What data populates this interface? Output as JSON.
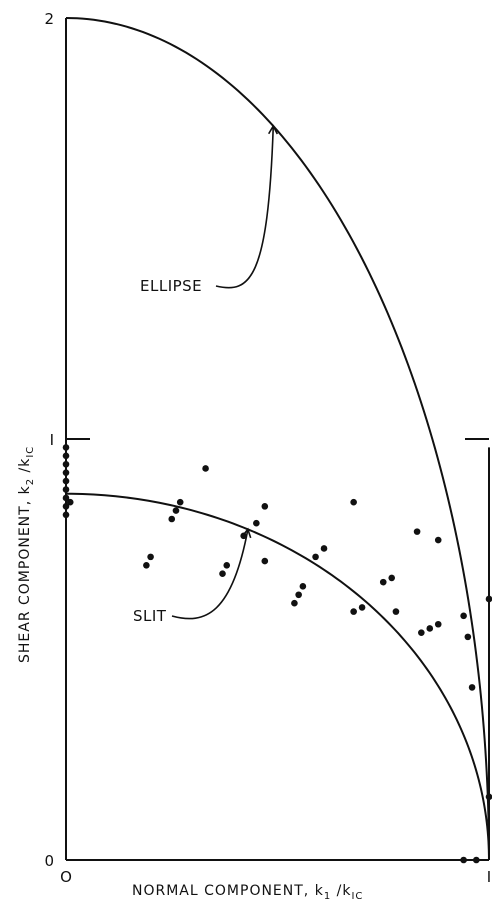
{
  "chart_data": {
    "type": "scatter",
    "xlabel": "NORMAL COMPONENT, k",
    "xlabel_sub1": "1",
    "xlabel_mid": " /k",
    "xlabel_sub2": "IC",
    "ylabel": "SHEAR COMPONENT, k",
    "ylabel_sub1": "2",
    "ylabel_mid": " /k",
    "ylabel_sub2": "IC",
    "xlim": [
      0,
      1
    ],
    "ylim": [
      0,
      2
    ],
    "x_ticks": [
      {
        "value": 0,
        "label": "O"
      },
      {
        "value": 1,
        "label": "I"
      }
    ],
    "y_ticks": [
      {
        "value": 0,
        "label": "0"
      },
      {
        "value": 1,
        "label": "I"
      },
      {
        "value": 2,
        "label": "2"
      }
    ],
    "grid": false,
    "curves": [
      {
        "name": "ELLIPSE",
        "y_at_x0": 2.0,
        "shape": "quarter-ellipse"
      },
      {
        "name": "SLIT",
        "y_at_x0": 0.87,
        "shape": "quarter-ellipse"
      }
    ],
    "annotations": [
      {
        "text": "ELLIPSE",
        "points_to_x": 0.49
      },
      {
        "text": "SLIT",
        "points_to_x": 0.43
      }
    ],
    "points": [
      [
        0.0,
        0.98
      ],
      [
        0.0,
        0.96
      ],
      [
        0.0,
        0.94
      ],
      [
        0.0,
        0.92
      ],
      [
        0.0,
        0.9
      ],
      [
        0.0,
        0.88
      ],
      [
        0.0,
        0.86
      ],
      [
        0.01,
        0.85
      ],
      [
        0.0,
        0.84
      ],
      [
        0.0,
        0.82
      ],
      [
        0.19,
        0.7
      ],
      [
        0.2,
        0.72
      ],
      [
        0.25,
        0.81
      ],
      [
        0.26,
        0.83
      ],
      [
        0.27,
        0.85
      ],
      [
        0.33,
        0.93
      ],
      [
        0.37,
        0.68
      ],
      [
        0.38,
        0.7
      ],
      [
        0.42,
        0.77
      ],
      [
        0.45,
        0.8
      ],
      [
        0.47,
        0.71
      ],
      [
        0.47,
        0.84
      ],
      [
        0.54,
        0.61
      ],
      [
        0.55,
        0.63
      ],
      [
        0.56,
        0.65
      ],
      [
        0.59,
        0.72
      ],
      [
        0.61,
        0.74
      ],
      [
        0.68,
        0.85
      ],
      [
        0.68,
        0.59
      ],
      [
        0.7,
        0.6
      ],
      [
        0.75,
        0.66
      ],
      [
        0.77,
        0.67
      ],
      [
        0.78,
        0.59
      ],
      [
        0.83,
        0.78
      ],
      [
        0.84,
        0.54
      ],
      [
        0.86,
        0.55
      ],
      [
        0.88,
        0.56
      ],
      [
        0.88,
        0.76
      ],
      [
        0.94,
        0.58
      ],
      [
        0.95,
        0.53
      ],
      [
        0.96,
        0.41
      ],
      [
        1.0,
        0.62
      ],
      [
        1.0,
        0.15
      ],
      [
        0.94,
        0.0
      ],
      [
        0.97,
        0.0
      ]
    ]
  }
}
